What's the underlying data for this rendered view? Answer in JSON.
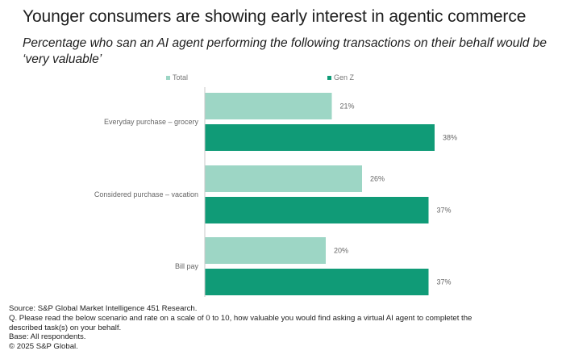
{
  "header": {
    "title": "Younger consumers are showing early interest in agentic commerce",
    "subtitle": "Percentage who san an AI agent performing the following transactions on their behalf would be ‘very valuable’"
  },
  "chart_data": {
    "type": "bar",
    "orientation": "horizontal",
    "categories": [
      "Everyday purchase – grocery",
      "Considered purchase  – vacation",
      "Bill pay"
    ],
    "series": [
      {
        "name": "Total",
        "color": "#9dd6c5",
        "values": [
          21,
          26,
          20
        ],
        "labels": [
          "21%",
          "26%",
          "20%"
        ]
      },
      {
        "name": "Gen Z",
        "color": "#109b77",
        "values": [
          38,
          37,
          37
        ],
        "labels": [
          "38%",
          "37%",
          "37%"
        ]
      }
    ],
    "xlim": [
      0,
      40
    ],
    "legend_position": "top",
    "grid": false
  },
  "footer": {
    "source": "Source: S&P Global Market Intelligence 451 Research.",
    "question_line1": "Q. Please read the below scenario and rate on a scale of 0 to 10, how valuable you would find asking a virtual AI agent to completet the",
    "question_line2": "described task(s) on your behalf.",
    "base": "Base: All respondents.",
    "copyright": "© 2025 S&P Global."
  }
}
